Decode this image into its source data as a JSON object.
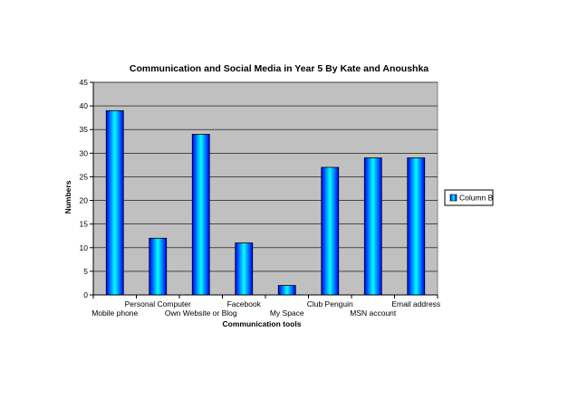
{
  "chart_data": {
    "type": "bar",
    "title": "Communication and Social Media in Year 5 By Kate and Anoushka",
    "xlabel": "Communication tools",
    "ylabel": "Numbers",
    "categories": [
      "Mobile phone",
      "Personal Computer",
      "Own Website or Blog",
      "Facebook",
      "My Space",
      "Club Penguin",
      "MSN account",
      "Email address"
    ],
    "series": [
      {
        "name": "Column B",
        "values": [
          39,
          12,
          34,
          11,
          2,
          27,
          29,
          29
        ]
      }
    ],
    "ylim": [
      0,
      45
    ],
    "yticks": [
      0,
      5,
      10,
      15,
      20,
      25,
      30,
      35,
      40,
      45
    ],
    "grid": true,
    "legend_position": "right",
    "colors": {
      "plot_background": "#c0c0c0",
      "bar_edge": "#0000ff",
      "bar_center": "#00ffff",
      "gridline": "#000000"
    }
  }
}
